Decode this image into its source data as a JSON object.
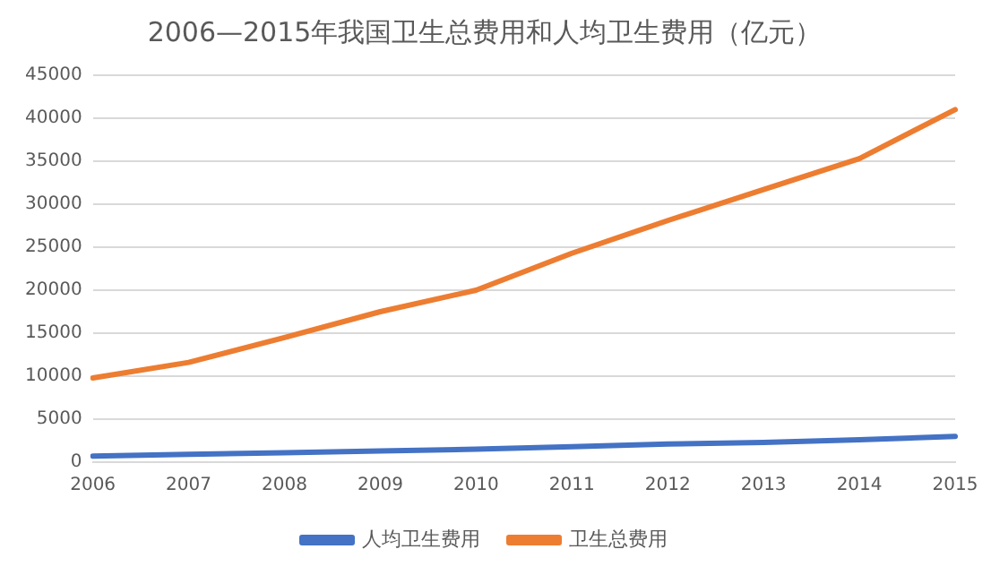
{
  "chart_data": {
    "type": "line",
    "title": "2006—2015年我国卫生总费用和人均卫生费用（亿元）",
    "categories": [
      "2006",
      "2007",
      "2008",
      "2009",
      "2010",
      "2011",
      "2012",
      "2013",
      "2014",
      "2015"
    ],
    "series": [
      {
        "name": "人均卫生费用",
        "color": "#4472c4",
        "values": [
          700,
          900,
          1100,
          1300,
          1500,
          1800,
          2100,
          2300,
          2600,
          3000
        ]
      },
      {
        "name": "卫生总费用",
        "color": "#ed7d31",
        "values": [
          9800,
          11600,
          14500,
          17500,
          20000,
          24300,
          28100,
          31700,
          35300,
          41000
        ]
      }
    ],
    "ylim": [
      0,
      45000
    ],
    "yticks": [
      0,
      5000,
      10000,
      15000,
      20000,
      25000,
      30000,
      35000,
      40000,
      45000
    ],
    "grid": "y",
    "legend": "bottom",
    "marker": "none",
    "line_style": "solid"
  }
}
